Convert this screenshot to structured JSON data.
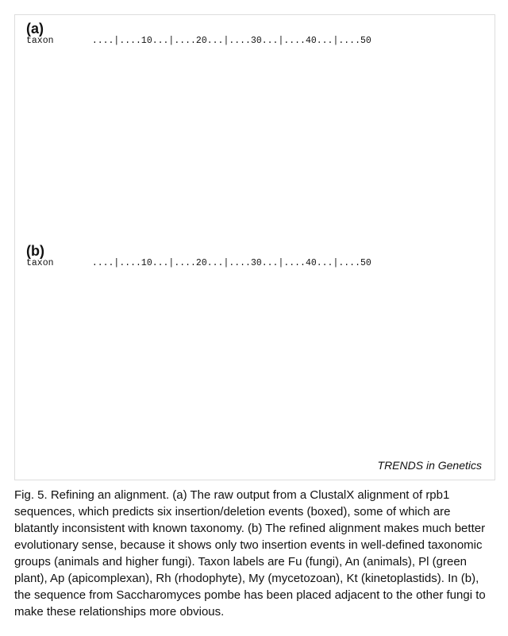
{
  "a": "(a)",
  "b": "(b)",
  "credit": "TRENDS in Genetics",
  "caption": "Fig. 5. Refining an alignment. (a) The raw output from a ClustalX alignment of rpb1 sequences, which predicts six insertion/deletion events (boxed), some of which are blatantly inconsistent with known taxonomy. (b) The refined alignment makes much better evolutionary sense, because it shows only two insertion events in well-defined taxonomic groups (animals and higher fungi). Taxon labels are Fu (fungi), An (animals), Pl (green plant), Ap (apicomplexan), Rh (rhodophyte), My (mycetozoan), Kt (kinetoplastids). In (b), the sequence from Saccharomyces pombe has been placed adjacent to the other fungi to make these relationships more obvious."
}
